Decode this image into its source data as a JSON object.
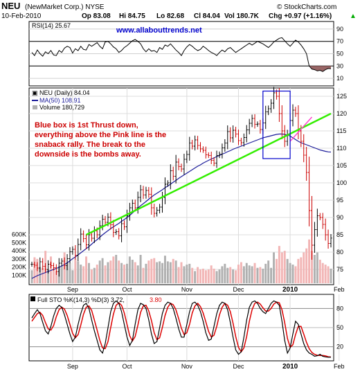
{
  "header": {
    "symbol": "NEU",
    "company": "(NewMarket Corp.) NYSE",
    "date": "10-Feb-2010",
    "open": "Op 83.08",
    "high": "Hi 84.75",
    "low": "Lo 82.68",
    "close": "Cl 84.04",
    "volume": "Vol 180.7K",
    "change": "Chg +0.97 (+1.16%)",
    "change_arrow": "▲",
    "source": "© StockCharts.com"
  },
  "website": "www.allabouttrends.net",
  "annotation": [
    "Blue box is 1st Thrust down,",
    "everything above the Pink line is the",
    "snaback rally. The break to the",
    "downside is the bombs away."
  ],
  "colors": {
    "ma": "#1a1a99",
    "trend_line": "#33ee00",
    "pink_line": "#ff44cc",
    "box": "#0000cc",
    "volume_up": "#b0b0b0",
    "volume_down": "#f2b5b5",
    "sto_k": "#000000",
    "sto_d": "#dd0000",
    "rsi_fill": "#996666",
    "note": "#cc0000",
    "url": "#0000cc"
  },
  "chart_data": [
    {
      "type": "line",
      "name": "rsi",
      "legend": "RSI(14) 25.67",
      "ylim": [
        0,
        100
      ],
      "y_ticks": [
        10,
        30,
        50,
        70,
        90
      ],
      "reference_lines": [
        30,
        70
      ],
      "values": [
        52,
        47,
        56,
        50,
        46,
        53,
        50,
        55,
        48,
        47,
        55,
        52,
        59,
        62,
        60,
        51,
        58,
        55,
        62,
        57,
        56,
        65,
        62,
        65,
        68,
        62,
        58,
        69,
        70,
        66,
        61,
        58,
        52,
        55,
        60,
        63,
        67,
        71,
        73,
        70,
        66,
        58,
        53,
        58,
        54,
        55,
        52,
        60,
        57,
        64,
        62,
        66,
        61,
        56,
        52,
        47,
        55,
        61,
        65,
        62,
        58,
        55,
        57,
        62,
        59,
        55,
        52,
        50,
        47,
        52,
        56,
        53,
        58,
        60,
        56,
        52,
        55,
        58,
        61,
        64,
        67,
        64,
        67,
        70,
        68,
        66,
        63,
        60,
        64,
        69,
        72,
        75,
        76,
        71,
        66,
        62,
        67,
        72,
        69,
        64,
        58,
        50,
        30,
        25,
        24,
        22,
        23,
        21,
        24,
        26,
        25.67
      ]
    },
    {
      "type": "ohlc",
      "name": "price",
      "legend_price": "NEU (Daily) 84.04",
      "legend_ma": "MA(50) 108.91",
      "legend_volume": "Volume 180,729",
      "ylim": [
        71,
        127
      ],
      "y_ticks": [
        75,
        80,
        85,
        90,
        95,
        100,
        105,
        110,
        115,
        120,
        125
      ],
      "volume_ylim": [
        0,
        700000
      ],
      "volume_ticks": [
        {
          "v": 100000,
          "label": "100K"
        },
        {
          "v": 200000,
          "label": "200K"
        },
        {
          "v": 300000,
          "label": "300K"
        },
        {
          "v": 400000,
          "label": "400K"
        },
        {
          "v": 500000,
          "label": "500K"
        },
        {
          "v": 600000,
          "label": "600K"
        }
      ],
      "close": [
        76.5,
        76.2,
        75.4,
        77.2,
        75.9,
        75.0,
        76.5,
        76.1,
        75.5,
        74.4,
        76.8,
        77.4,
        76.1,
        78.1,
        80.1,
        80.8,
        79.1,
        82.2,
        85.2,
        83.9,
        82.1,
        85.0,
        84.0,
        86.1,
        85.0,
        87.6,
        89.5,
        88.6,
        90.1,
        87.9,
        85.7,
        85.9,
        84.7,
        88.2,
        87.3,
        90.5,
        92.8,
        94.1,
        92.8,
        95.8,
        98.0,
        96.5,
        97.8,
        96.7,
        92.8,
        91.2,
        92.1,
        93.0,
        95.8,
        99.6,
        100.0,
        103.5,
        101.9,
        106.0,
        104.7,
        104.0,
        106.8,
        108.2,
        111.5,
        110.6,
        112.4,
        110.8,
        109.8,
        109.4,
        108.1,
        107.9,
        106.5,
        105.7,
        107.9,
        108.3,
        110.1,
        111.5,
        114.8,
        113.0,
        115.2,
        114.1,
        112.2,
        111.6,
        113.1,
        115.3,
        117.2,
        118.6,
        116.9,
        117.0,
        115.4,
        117.3,
        120.5,
        121.4,
        123.0,
        126.0,
        125.0,
        120.0,
        115.0,
        112.0,
        114.0,
        118.0,
        121.0,
        120.0,
        115.0,
        112.0,
        108.0,
        103.0,
        92.0,
        82.0,
        86.5,
        90.5,
        90.0,
        88.0,
        85.0,
        82.5,
        84.04
      ],
      "ma50": [
        72.4,
        72.8,
        73.2,
        73.5,
        73.8,
        74.1,
        74.4,
        74.7,
        75.0,
        75.3,
        75.6,
        76.0,
        76.4,
        76.9,
        77.5,
        78.1,
        78.6,
        79.2,
        79.8,
        80.4,
        81.0,
        81.6,
        82.3,
        83.0,
        83.6,
        84.3,
        85.0,
        85.6,
        86.2,
        86.8,
        87.3,
        87.8,
        88.3,
        88.9,
        89.4,
        90.0,
        90.6,
        91.3,
        92.0,
        92.7,
        93.4,
        94.0,
        94.6,
        95.3,
        95.9,
        96.5,
        97.0,
        97.5,
        98.0,
        98.6,
        99.1,
        99.6,
        100.2,
        100.7,
        101.3,
        101.8,
        102.3,
        102.8,
        103.3,
        103.8,
        104.3,
        104.8,
        105.2,
        105.7,
        106.1,
        106.5,
        106.9,
        107.2,
        107.6,
        107.9,
        108.3,
        108.6,
        109.0,
        109.3,
        109.7,
        110.0,
        110.3,
        110.6,
        110.9,
        111.2,
        111.5,
        111.8,
        112.1,
        112.4,
        112.7,
        113.0,
        113.2,
        113.4,
        113.6,
        113.8,
        114.0,
        114.1,
        114.1,
        114.0,
        113.8,
        113.5,
        113.0,
        112.5,
        112.0,
        111.6,
        111.3,
        111.0,
        110.7,
        110.4,
        110.1,
        109.8,
        109.5,
        109.3,
        109.1,
        108.95,
        108.91
      ],
      "volume": [
        160000,
        320000,
        300000,
        200000,
        190000,
        400000,
        170000,
        330000,
        180000,
        150000,
        210000,
        220000,
        380000,
        260000,
        250000,
        160000,
        300000,
        270000,
        230000,
        210000,
        330000,
        250000,
        170000,
        190000,
        230000,
        280000,
        310000,
        220000,
        260000,
        280000,
        330000,
        350000,
        280000,
        250000,
        230000,
        240000,
        330000,
        290000,
        260000,
        220000,
        350000,
        190000,
        240000,
        280000,
        300000,
        310000,
        260000,
        270000,
        250000,
        340000,
        270000,
        260000,
        300000,
        280000,
        200000,
        260000,
        210000,
        230000,
        240000,
        190000,
        150000,
        200000,
        170000,
        180000,
        160000,
        170000,
        220000,
        180000,
        150000,
        170000,
        210000,
        240000,
        190000,
        200000,
        170000,
        160000,
        230000,
        260000,
        210000,
        250000,
        220000,
        210000,
        250000,
        190000,
        200000,
        180000,
        240000,
        280000,
        190000,
        380000,
        300000,
        460000,
        380000,
        400000,
        300000,
        250000,
        230000,
        210000,
        300000,
        320000,
        380000,
        430000,
        540000,
        400000,
        350000,
        380000,
        290000,
        250000,
        230000,
        210000,
        180729
      ],
      "trend_line": {
        "from_index": 20,
        "from_value": 85,
        "to_index": 110,
        "to_value": 120
      },
      "pink_line": {
        "from_index": 95,
        "from_value": 112,
        "to_index": 103,
        "to_value": 119
      },
      "box": {
        "from_index": 85,
        "to_index": 95,
        "low": 107,
        "high": 126.5
      }
    },
    {
      "type": "line",
      "name": "stochastic",
      "legend_k": "Full STO %K(14,3) %D(3) 3.72,",
      "legend_d": "3.80",
      "ylim": [
        0,
        100
      ],
      "y_ticks": [
        20,
        50,
        80
      ],
      "k": [
        65,
        72,
        78,
        72,
        58,
        45,
        40,
        52,
        68,
        80,
        85,
        82,
        70,
        55,
        40,
        28,
        35,
        55,
        72,
        85,
        88,
        80,
        62,
        45,
        30,
        15,
        10,
        25,
        50,
        75,
        88,
        92,
        88,
        75,
        55,
        35,
        22,
        30,
        55,
        78,
        88,
        86,
        80,
        62,
        40,
        25,
        28,
        50,
        72,
        85,
        90,
        88,
        80,
        65,
        48,
        35,
        35,
        55,
        75,
        88,
        90,
        85,
        75,
        60,
        42,
        30,
        32,
        52,
        72,
        85,
        90,
        88,
        78,
        58,
        35,
        15,
        8,
        12,
        35,
        62,
        82,
        90,
        92,
        88,
        80,
        75,
        72,
        80,
        88,
        92,
        90,
        85,
        60,
        30,
        10,
        18,
        40,
        60,
        55,
        40,
        25,
        15,
        10,
        8,
        5,
        6,
        8,
        5,
        4,
        3.5,
        3.72
      ],
      "d": [
        60,
        66,
        72,
        74,
        69,
        58,
        48,
        46,
        53,
        67,
        78,
        82,
        79,
        69,
        55,
        41,
        34,
        39,
        54,
        71,
        82,
        84,
        77,
        62,
        46,
        30,
        18,
        17,
        28,
        50,
        71,
        85,
        89,
        85,
        73,
        55,
        37,
        29,
        36,
        54,
        74,
        84,
        85,
        76,
        61,
        42,
        31,
        34,
        50,
        69,
        82,
        88,
        86,
        78,
        64,
        49,
        39,
        42,
        55,
        73,
        84,
        88,
        83,
        73,
        59,
        44,
        35,
        38,
        52,
        70,
        82,
        88,
        85,
        75,
        57,
        36,
        19,
        12,
        18,
        36,
        60,
        78,
        88,
        90,
        87,
        81,
        76,
        76,
        80,
        87,
        90,
        89,
        78,
        58,
        33,
        19,
        23,
        39,
        52,
        52,
        40,
        27,
        17,
        11,
        8,
        6.5,
        6.3,
        6.3,
        5.7,
        4.2,
        3.8
      ]
    }
  ],
  "x_axis": {
    "months": [
      {
        "label": "Sep",
        "index": 15,
        "bold": false
      },
      {
        "label": "Oct",
        "index": 35,
        "bold": false
      },
      {
        "label": "Nov",
        "index": 57,
        "bold": false
      },
      {
        "label": "Dec",
        "index": 76,
        "bold": false
      },
      {
        "label": "2010",
        "index": 95,
        "bold": true
      },
      {
        "label": "Feb",
        "index": 113,
        "bold": false
      }
    ]
  }
}
